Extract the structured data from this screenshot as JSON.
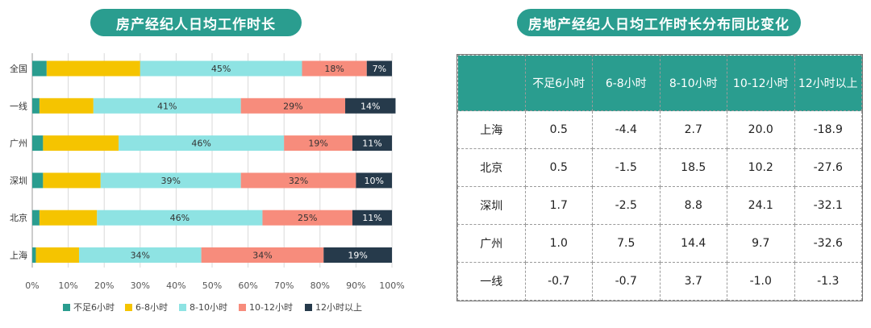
{
  "left_title": "房产经纪人日均工作时长",
  "right_title": "房地产经纪人日均工作时长分布同比变化",
  "colors": {
    "teal": "#2a9d8f",
    "series": [
      "#2a9d8f",
      "#f5c400",
      "#8ee3e3",
      "#f78c7c",
      "#263a4b"
    ]
  },
  "chart_data": {
    "type": "bar",
    "orientation": "horizontal",
    "stacked": true,
    "title": "房产经纪人日均工作时长",
    "categories": [
      "全国",
      "一线",
      "广州",
      "深圳",
      "北京",
      "上海"
    ],
    "series": [
      {
        "name": "不足6小时",
        "values": [
          4,
          2,
          3,
          3,
          2,
          1
        ]
      },
      {
        "name": "6-8小时",
        "values": [
          26,
          15,
          21,
          16,
          16,
          12
        ]
      },
      {
        "name": "8-10小时",
        "values": [
          45,
          41,
          46,
          39,
          46,
          34
        ]
      },
      {
        "name": "10-12小时",
        "values": [
          18,
          29,
          19,
          32,
          25,
          34
        ]
      },
      {
        "name": "12小时以上",
        "values": [
          7,
          14,
          11,
          10,
          11,
          19
        ]
      }
    ],
    "data_labels": [
      [
        "",
        "",
        "45%",
        "18%",
        "7%"
      ],
      [
        "",
        "",
        "41%",
        "29%",
        "14%"
      ],
      [
        "",
        "",
        "46%",
        "19%",
        "11%"
      ],
      [
        "",
        "",
        "39%",
        "32%",
        "10%"
      ],
      [
        "",
        "",
        "46%",
        "25%",
        "11%"
      ],
      [
        "",
        "",
        "34%",
        "34%",
        "19%"
      ]
    ],
    "x_ticks": [
      "0%",
      "10%",
      "20%",
      "30%",
      "40%",
      "50%",
      "60%",
      "70%",
      "80%",
      "90%",
      "100%"
    ],
    "xlim": [
      0,
      100
    ],
    "grid": true,
    "legend_position": "bottom"
  },
  "table": {
    "headers": [
      "",
      "不足6小时",
      "6-8小时",
      "8-10小时",
      "10-12小时",
      "12小时以上"
    ],
    "rows": [
      [
        "上海",
        "0.5",
        "-4.4",
        "2.7",
        "20.0",
        "-18.9"
      ],
      [
        "北京",
        "0.5",
        "-1.5",
        "18.5",
        "10.2",
        "-27.6"
      ],
      [
        "深圳",
        "1.7",
        "-2.5",
        "8.8",
        "24.1",
        "-32.1"
      ],
      [
        "广州",
        "1.0",
        "7.5",
        "14.4",
        "9.7",
        "-32.6"
      ],
      [
        "一线",
        "-0.7",
        "-0.7",
        "3.7",
        "-1.0",
        "-1.3"
      ]
    ]
  }
}
